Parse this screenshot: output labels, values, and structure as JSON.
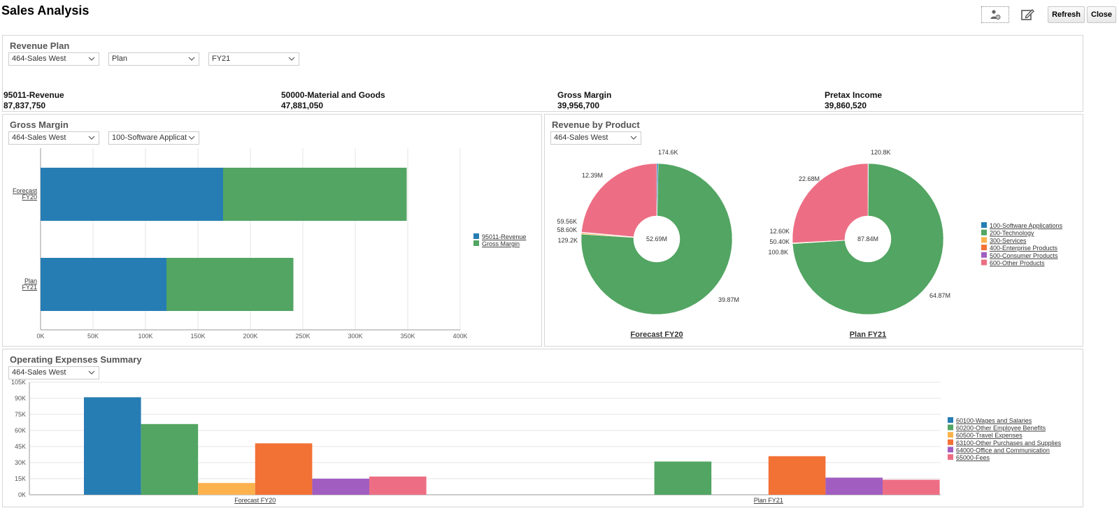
{
  "page": {
    "title": "Sales Analysis"
  },
  "toolbar": {
    "refresh_label": "Refresh",
    "close_label": "Close",
    "person_icon": "person-gear-icon",
    "edit_icon": "edit-icon"
  },
  "revenue_plan": {
    "title": "Revenue Plan",
    "filters": [
      "464-Sales West",
      "Plan",
      "FY21"
    ],
    "kpis": [
      {
        "label": "95011-Revenue",
        "value": "87,837,750"
      },
      {
        "label": "50000-Material and Goods",
        "value": "47,881,050"
      },
      {
        "label": "Gross Margin",
        "value": "39,956,700"
      },
      {
        "label": "Pretax Income",
        "value": "39,860,520"
      }
    ]
  },
  "gross_margin": {
    "title": "Gross Margin",
    "filters": [
      "464-Sales West",
      "100-Software Applicat"
    ]
  },
  "revenue_by_product": {
    "title": "Revenue by Product",
    "filters": [
      "464-Sales West"
    ]
  },
  "operating_expenses": {
    "title": "Operating Expenses Summary",
    "filters": [
      "464-Sales West"
    ]
  },
  "chart_data": [
    {
      "type": "bar",
      "orientation": "horizontal",
      "stacked": true,
      "categories": [
        [
          "Forecast",
          "FY20"
        ],
        [
          "Plan",
          "FY21"
        ]
      ],
      "series": [
        {
          "name": "95011-Revenue",
          "values": [
            174000,
            120000
          ],
          "color": "#267db3"
        },
        {
          "name": "Gross Margin",
          "values": [
            175000,
            121000
          ],
          "color": "#52a562"
        }
      ],
      "xlim": [
        0,
        400000
      ],
      "xticks": [
        "0K",
        "50K",
        "100K",
        "150K",
        "200K",
        "250K",
        "300K",
        "350K",
        "400K"
      ],
      "legend": "right"
    },
    {
      "type": "pie",
      "donut": true,
      "charts": [
        {
          "title": "Forecast FY20",
          "center_label": "52.69M",
          "slices": [
            {
              "name": "100-Software Applications",
              "value": 0.1746,
              "label": "174.6K"
            },
            {
              "name": "200-Technology",
              "value": 39.87,
              "label": "39.87M"
            },
            {
              "name": "300-Services",
              "value": 0.1292,
              "label": "129.2K"
            },
            {
              "name": "400-Enterprise Products",
              "value": 0.0586,
              "label": "58.60K"
            },
            {
              "name": "500-Consumer Products",
              "value": 0.0596,
              "label": "59.56K"
            },
            {
              "name": "600-Other Products",
              "value": 12.39,
              "label": "12.39M"
            }
          ]
        },
        {
          "title": "Plan FY21",
          "center_label": "87.84M",
          "slices": [
            {
              "name": "100-Software Applications",
              "value": 0.1208,
              "label": "120.8K"
            },
            {
              "name": "200-Technology",
              "value": 64.87,
              "label": "64.87M"
            },
            {
              "name": "300-Services",
              "value": 0.1008,
              "label": "100.8K"
            },
            {
              "name": "400-Enterprise Products",
              "value": 0.0504,
              "label": "50.40K"
            },
            {
              "name": "500-Consumer Products",
              "value": 0.0126,
              "label": "12.60K"
            },
            {
              "name": "600-Other Products",
              "value": 22.68,
              "label": "22.68M"
            }
          ]
        }
      ],
      "legend": {
        "placement": "right",
        "items": [
          {
            "name": "100-Software Applications",
            "color": "#267db3"
          },
          {
            "name": "200-Technology",
            "color": "#52a562"
          },
          {
            "name": "300-Services",
            "color": "#fcb24c"
          },
          {
            "name": "400-Enterprise Products",
            "color": "#f27135"
          },
          {
            "name": "500-Consumer Products",
            "color": "#a15ec0"
          },
          {
            "name": "600-Other Products",
            "color": "#ed6e84"
          }
        ]
      }
    },
    {
      "type": "bar",
      "orientation": "vertical",
      "categories": [
        "Forecast FY20",
        "Plan FY21"
      ],
      "series": [
        {
          "name": "60100-Wages and Salaries",
          "values": [
            91000,
            0
          ],
          "color": "#267db3"
        },
        {
          "name": "60200-Other Employee Benefits",
          "values": [
            66000,
            31000
          ],
          "color": "#52a562"
        },
        {
          "name": "60500-Travel Expenses",
          "values": [
            11000,
            0
          ],
          "color": "#fcb24c"
        },
        {
          "name": "63100-Other Purchases and Supplies",
          "values": [
            48000,
            36000
          ],
          "color": "#f27135"
        },
        {
          "name": "64000-Office and Communication",
          "values": [
            15000,
            16000
          ],
          "color": "#a15ec0"
        },
        {
          "name": "65000-Fees",
          "values": [
            17000,
            14000
          ],
          "color": "#ed6e84"
        }
      ],
      "ylim": [
        0,
        105000
      ],
      "yticks": [
        "0K",
        "15K",
        "30K",
        "45K",
        "60K",
        "75K",
        "90K",
        "105K"
      ],
      "grid": true,
      "legend": "right"
    }
  ]
}
